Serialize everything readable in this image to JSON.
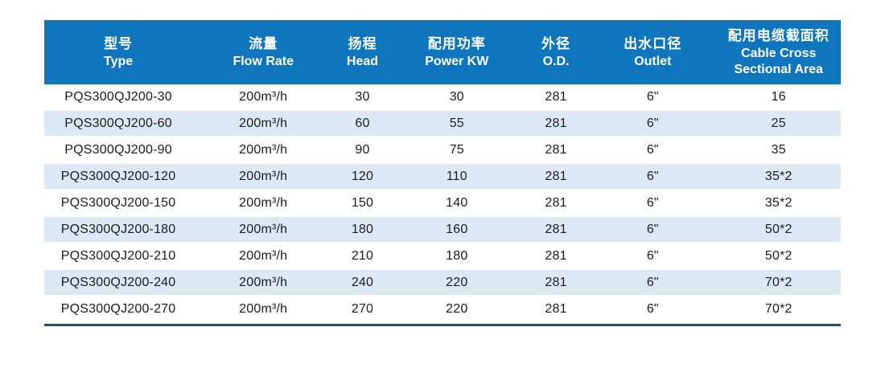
{
  "theme": {
    "header_bg": "#0F76BD",
    "header_text": "#FFFFFF",
    "alt_row_bg": "#DCE9F5",
    "row_bg": "#FFFFFF",
    "bottom_rule": "#1B4E80",
    "body_text": "#1C1C1E",
    "page_bg": "#FFFFFF"
  },
  "table": {
    "columns": [
      {
        "key": "type",
        "zh": "型号",
        "en": "Type"
      },
      {
        "key": "flow-rate",
        "zh": "流量",
        "en": "Flow Rate"
      },
      {
        "key": "head",
        "zh": "扬程",
        "en": "Head"
      },
      {
        "key": "power-kw",
        "zh": "配用功率",
        "en": "Power KW"
      },
      {
        "key": "od",
        "zh": "外径",
        "en": "O.D."
      },
      {
        "key": "outlet",
        "zh": "出水口径",
        "en": "Outlet"
      },
      {
        "key": "cable-cross-sectional-area",
        "zh": "配用电缆截面积",
        "en": "Cable Cross\nSectional Area"
      }
    ],
    "rows": [
      [
        "PQS300QJ200-30",
        "200m³/h",
        "30",
        "30",
        "281",
        "6\"",
        "16"
      ],
      [
        "PQS300QJ200-60",
        "200m³/h",
        "60",
        "55",
        "281",
        "6\"",
        "25"
      ],
      [
        "PQS300QJ200-90",
        "200m³/h",
        "90",
        "75",
        "281",
        "6\"",
        "35"
      ],
      [
        "PQS300QJ200-120",
        "200m³/h",
        "120",
        "110",
        "281",
        "6\"",
        "35*2"
      ],
      [
        "PQS300QJ200-150",
        "200m³/h",
        "150",
        "140",
        "281",
        "6\"",
        "35*2"
      ],
      [
        "PQS300QJ200-180",
        "200m³/h",
        "180",
        "160",
        "281",
        "6\"",
        "50*2"
      ],
      [
        "PQS300QJ200-210",
        "200m³/h",
        "210",
        "180",
        "281",
        "6\"",
        "50*2"
      ],
      [
        "PQS300QJ200-240",
        "200m³/h",
        "240",
        "220",
        "281",
        "6\"",
        "70*2"
      ],
      [
        "PQS300QJ200-270",
        "200m³/h",
        "270",
        "220",
        "281",
        "6\"",
        "70*2"
      ]
    ]
  }
}
